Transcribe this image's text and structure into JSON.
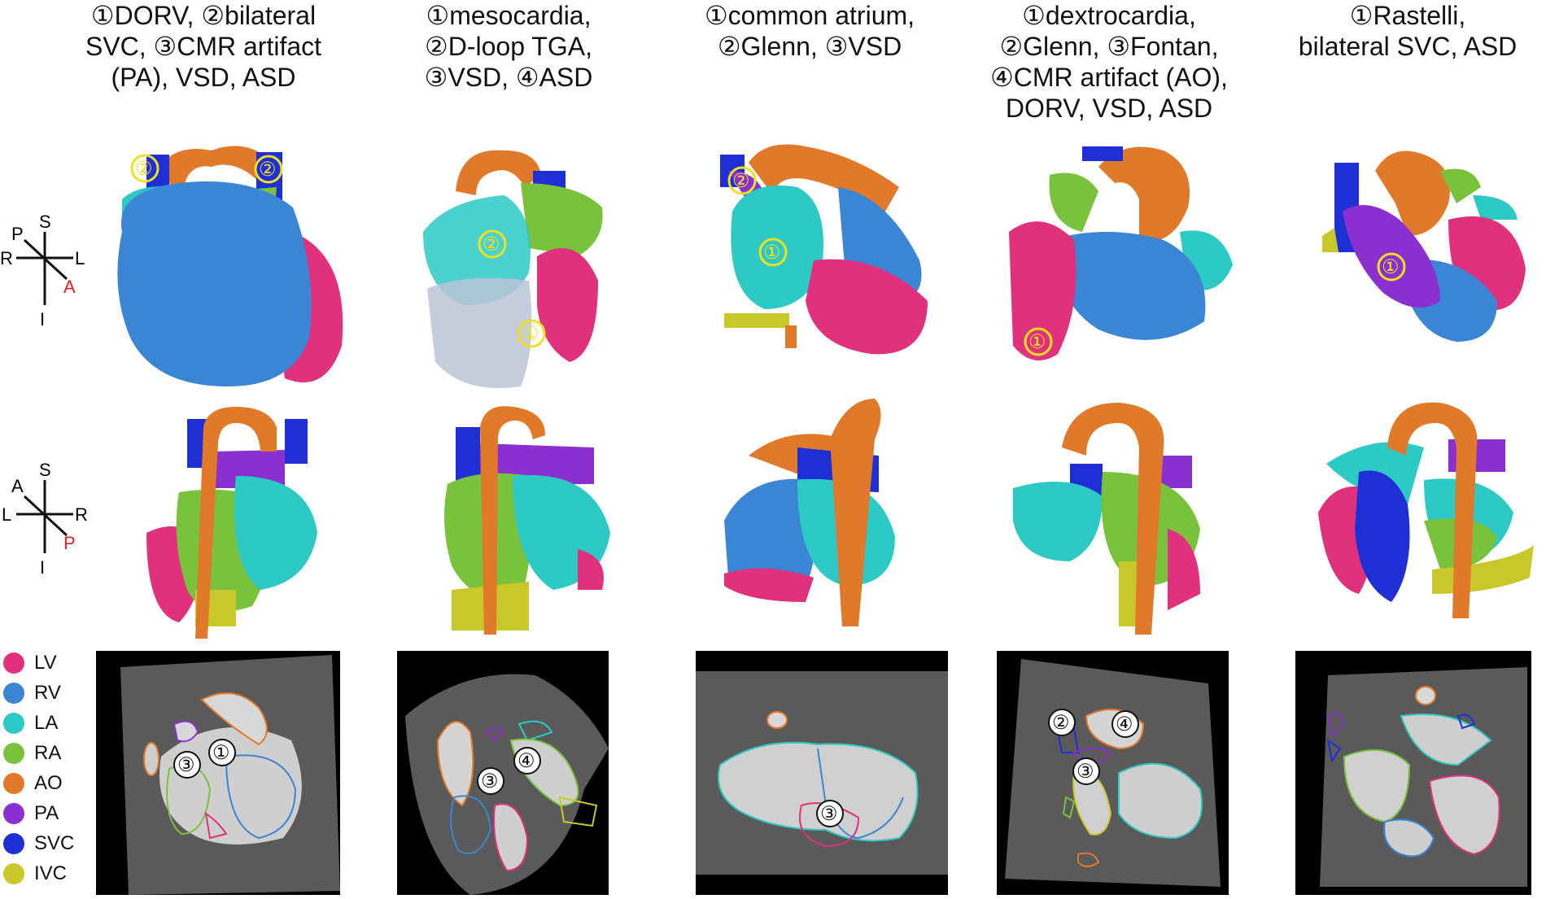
{
  "columns": [
    {
      "title": "①DORV, ②bilateral\nSVC, ③CMR artifact\n(PA), VSD, ASD"
    },
    {
      "title": "①mesocardia,\n②D-loop TGA,\n③VSD, ④ASD"
    },
    {
      "title": "①common atrium,\n②Glenn, ③VSD"
    },
    {
      "title": "①dextrocardia,\n②Glenn, ③Fontan,\n④CMR artifact (AO),\nDORV, VSD, ASD"
    },
    {
      "title": "①Rastelli,\nbilateral SVC, ASD"
    }
  ],
  "orientation_anterior": {
    "top": "S",
    "left_upper": "P",
    "left": "R",
    "right": "L",
    "bottom": "I",
    "emph": "A"
  },
  "orientation_posterior": {
    "top": "S",
    "left_upper": "A",
    "left": "L",
    "right": "R",
    "bottom": "I",
    "emph": "P"
  },
  "markers": {
    "m1": "①",
    "m2": "②",
    "m3": "③",
    "m4": "④"
  },
  "legend": [
    {
      "label": "LV",
      "color": "#e0307e"
    },
    {
      "label": "RV",
      "color": "#3a86d4"
    },
    {
      "label": "LA",
      "color": "#2cc9c5"
    },
    {
      "label": "RA",
      "color": "#78c23c"
    },
    {
      "label": "AO",
      "color": "#e07a2a"
    },
    {
      "label": "PA",
      "color": "#8a2fd0"
    },
    {
      "label": "SVC",
      "color": "#1f2fd6"
    },
    {
      "label": "IVC",
      "color": "#c8c82a"
    }
  ],
  "colors": {
    "emph": "#e02020",
    "yellow_marker": "#f0e020"
  }
}
